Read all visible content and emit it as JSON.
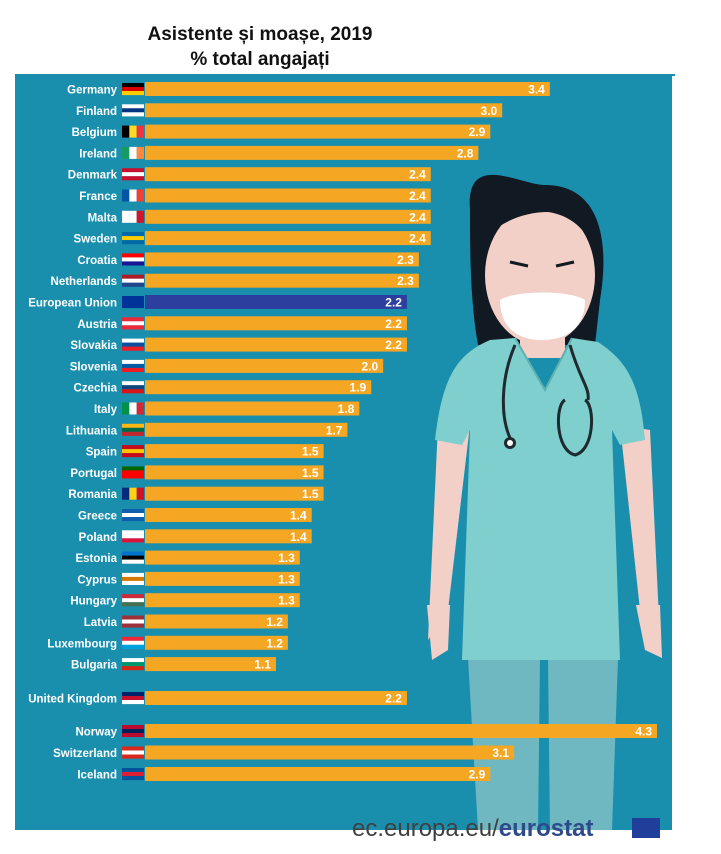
{
  "title_line1": "Asistente și moașe, 2019",
  "title_line2": "% total angajați",
  "footer": {
    "site": "ec.europa.eu/",
    "brand": "eurostat"
  },
  "colors": {
    "panel": "#1a8fad",
    "bar": "#f5a623",
    "eu_bar": "#2d3f9e",
    "label": "#ffffff"
  },
  "chart_data": {
    "type": "bar",
    "orientation": "horizontal",
    "title": "Asistente și moașe, 2019",
    "subtitle": "% total angajați",
    "categories": [
      "Germany",
      "Finland",
      "Belgium",
      "Ireland",
      "Denmark",
      "France",
      "Malta",
      "Sweden",
      "Croatia",
      "Netherlands",
      "European Union",
      "Austria",
      "Slovakia",
      "Slovenia",
      "Czechia",
      "Italy",
      "Lithuania",
      "Spain",
      "Portugal",
      "Romania",
      "Greece",
      "Poland",
      "Estonia",
      "Cyprus",
      "Hungary",
      "Latvia",
      "Luxembourg",
      "Bulgaria",
      "United Kingdom",
      "Norway",
      "Switzerland",
      "Iceland"
    ],
    "values": [
      3.4,
      3.0,
      2.9,
      2.8,
      2.4,
      2.4,
      2.4,
      2.4,
      2.3,
      2.3,
      2.2,
      2.2,
      2.2,
      2.0,
      1.9,
      1.8,
      1.7,
      1.5,
      1.5,
      1.5,
      1.4,
      1.4,
      1.3,
      1.3,
      1.3,
      1.2,
      1.2,
      1.1,
      2.2,
      4.3,
      3.1,
      2.9
    ],
    "value_labels": [
      "3.4",
      "3.0",
      "2.9",
      "2.8",
      "2.4",
      "2.4",
      "2.4",
      "2.4",
      "2.3",
      "2.3",
      "2.2",
      "2.2",
      "2.2",
      "2.0",
      "1.9",
      "1.8",
      "1.7",
      "1.5",
      "1.5",
      "1.5",
      "1.4",
      "1.4",
      "1.3",
      "1.3",
      "1.3",
      "1.2",
      "1.2",
      "1.1",
      "2.2",
      "4.3",
      "3.1",
      "2.9"
    ],
    "highlight": "European Union",
    "xlim": [
      0,
      4.3
    ],
    "grid": false
  }
}
